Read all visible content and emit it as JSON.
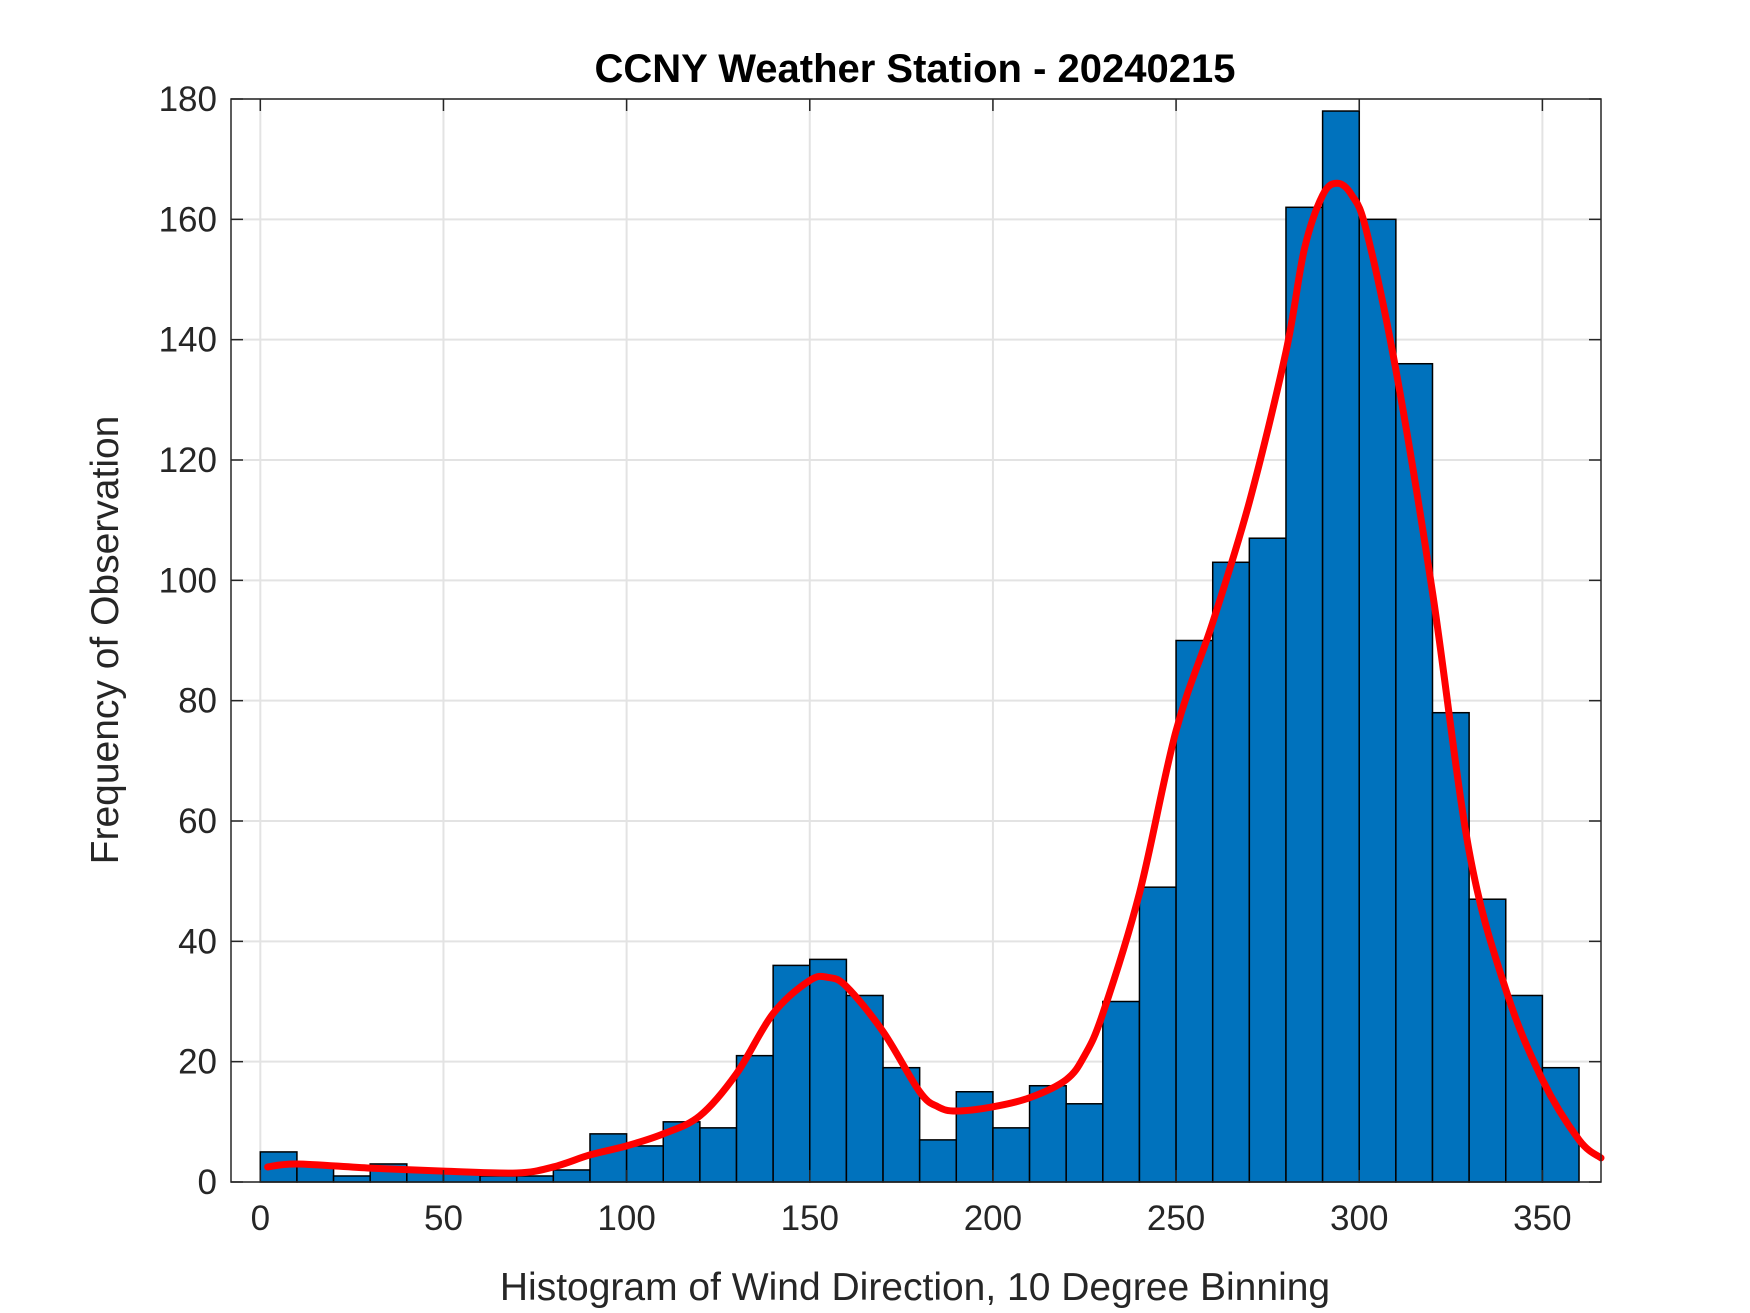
{
  "chart_data": {
    "type": "bar",
    "title": "CCNY Weather Station - 20240215",
    "xlabel": "Histogram of Wind Direction, 10 Degree Binning",
    "ylabel": "Frequency of Observation",
    "xlim": [
      -8,
      366
    ],
    "ylim": [
      0,
      180
    ],
    "xticks": [
      0,
      50,
      100,
      150,
      200,
      250,
      300,
      350
    ],
    "yticks": [
      0,
      20,
      40,
      60,
      80,
      100,
      120,
      140,
      160,
      180
    ],
    "grid": true,
    "bin_width": 10,
    "bin_edges_start": [
      0,
      10,
      20,
      30,
      40,
      50,
      60,
      70,
      80,
      90,
      100,
      110,
      120,
      130,
      140,
      150,
      160,
      170,
      180,
      190,
      200,
      210,
      220,
      230,
      240,
      250,
      260,
      270,
      280,
      290,
      300,
      310,
      320,
      330,
      340,
      350
    ],
    "values": [
      5,
      3,
      1,
      3,
      2,
      2,
      1,
      1,
      2,
      8,
      6,
      10,
      9,
      21,
      36,
      37,
      31,
      19,
      7,
      15,
      9,
      16,
      13,
      30,
      49,
      90,
      103,
      107,
      162,
      178,
      160,
      136,
      78,
      47,
      31,
      19
    ],
    "bar_color": "#0072BD",
    "fit_curve": {
      "color": "#FF0000",
      "x": [
        2,
        10,
        30,
        50,
        70,
        80,
        90,
        100,
        110,
        120,
        130,
        140,
        150,
        155,
        160,
        170,
        180,
        185,
        190,
        200,
        210,
        220,
        225,
        230,
        240,
        250,
        260,
        270,
        280,
        285,
        290,
        294,
        298,
        302,
        310,
        320,
        330,
        340,
        350,
        360,
        366
      ],
      "y": [
        2.5,
        3,
        2.3,
        1.8,
        1.5,
        2.5,
        4.5,
        6,
        8,
        11,
        18,
        28,
        33.5,
        34,
        32.5,
        25,
        15,
        12.5,
        11.8,
        12.5,
        14,
        17,
        21,
        28,
        48,
        75,
        93,
        113,
        138,
        155,
        164,
        166,
        164,
        158,
        135,
        98,
        55,
        32,
        17,
        7,
        4
      ]
    }
  }
}
